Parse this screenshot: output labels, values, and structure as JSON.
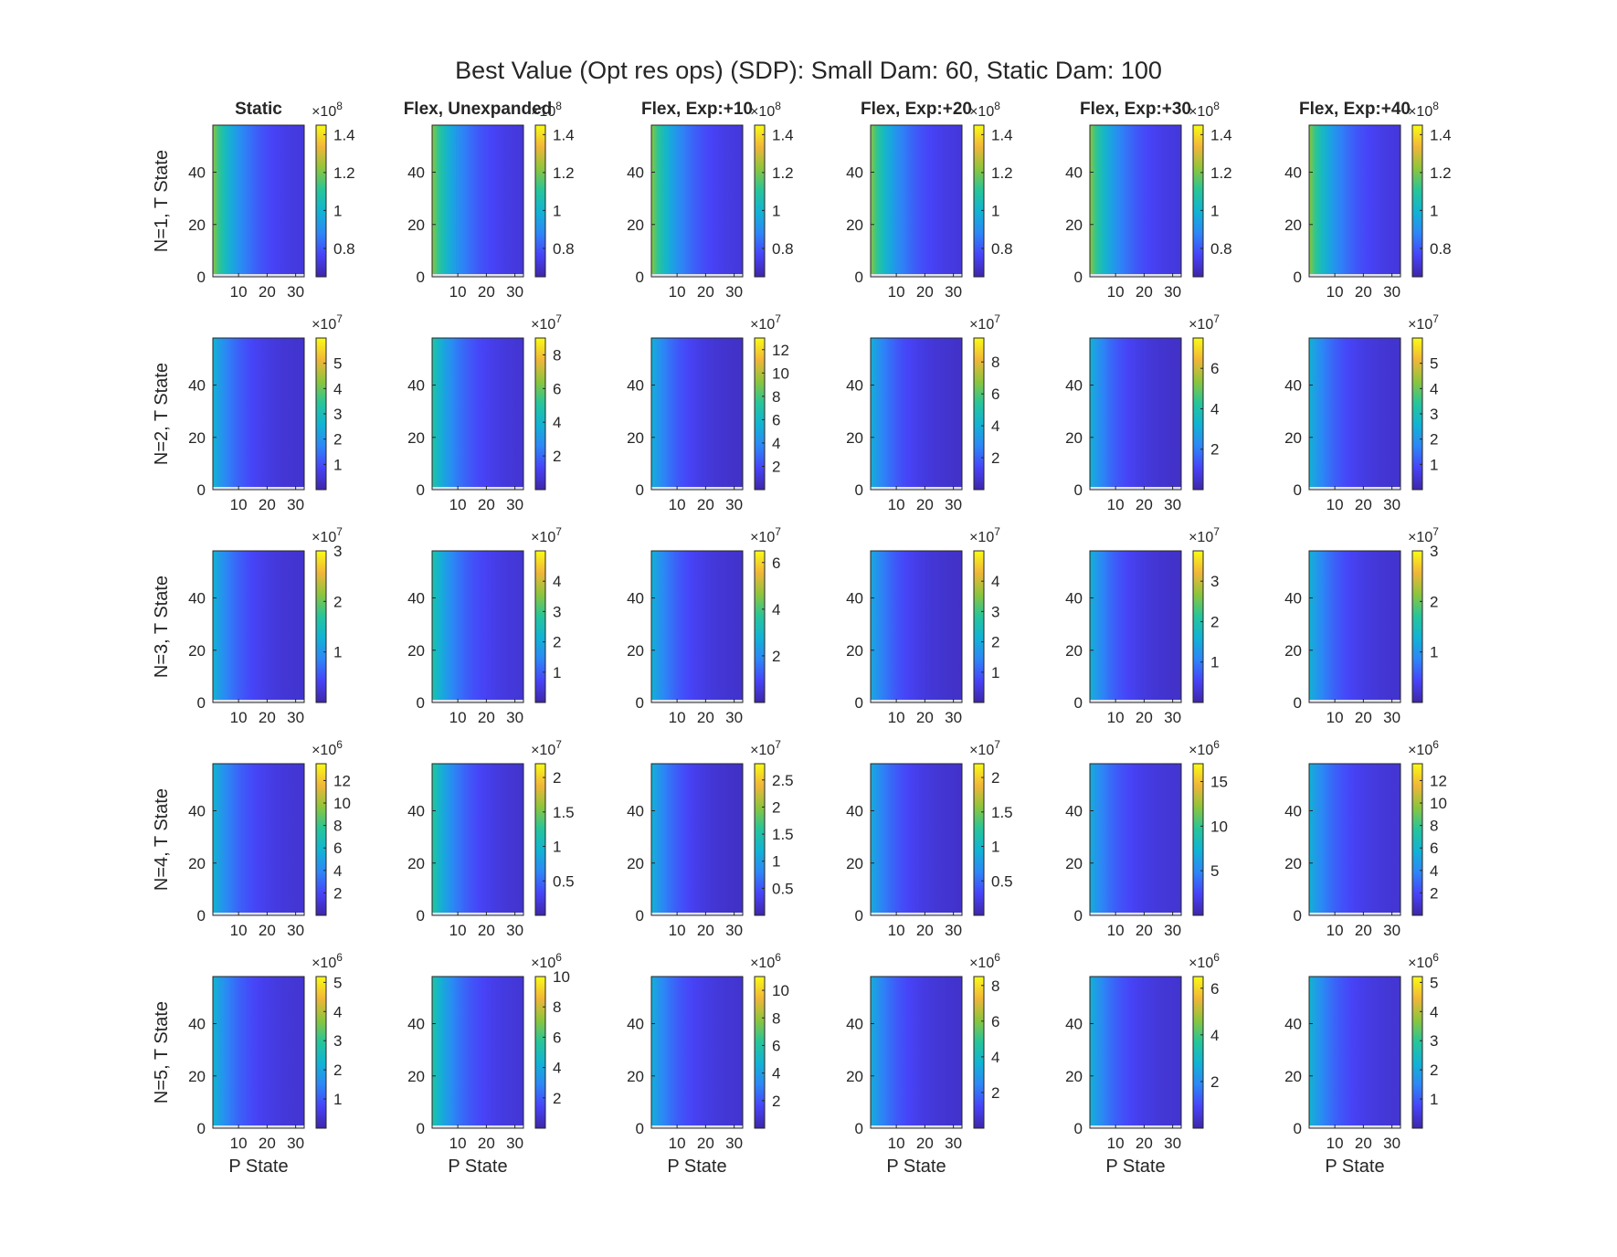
{
  "title": "Best Value (Opt res ops) (SDP): Small Dam: 60, Static Dam: 100",
  "chart_data": {
    "type": "heatmap",
    "title": "Best Value (Opt res ops) (SDP): Small Dam: 60, Static Dam: 100",
    "columns": [
      "Static",
      "Flex, Unexpanded",
      "Flex, Exp:+10",
      "Flex, Exp:+20",
      "Flex, Exp:+30",
      "Flex, Exp:+40"
    ],
    "rows": [
      "N=1, T State",
      "N=2, T State",
      "N=3, T State",
      "N=4, T State",
      "N=5, T State"
    ],
    "xlabel": "P State",
    "x_range": [
      1,
      33
    ],
    "y_range": [
      0,
      58
    ],
    "x_ticks": [
      "10",
      "20",
      "30"
    ],
    "y_ticks": [
      "0",
      "20",
      "40"
    ],
    "colormap": "parula",
    "colormap_colors": [
      "#3e26a8",
      "#4743f8",
      "#2d86f7",
      "#11b3d4",
      "#27c599",
      "#8dc53c",
      "#f2b638",
      "#f9fb15"
    ],
    "panels": [
      [
        {
          "multiplier": "×10^8",
          "cmin": 0.65,
          "cmax": 1.45,
          "ticks": [
            "0.8",
            "1",
            "1.2",
            "1.4"
          ],
          "tick_values": [
            0.8,
            1.0,
            1.2,
            1.4
          ],
          "left_max": 1.22,
          "right_min": 0.7
        },
        {
          "multiplier": "×10^8",
          "cmin": 0.65,
          "cmax": 1.45,
          "ticks": [
            "0.8",
            "1",
            "1.2",
            "1.4"
          ],
          "tick_values": [
            0.8,
            1.0,
            1.2,
            1.4
          ],
          "left_max": 1.22,
          "right_min": 0.7
        },
        {
          "multiplier": "×10^8",
          "cmin": 0.65,
          "cmax": 1.45,
          "ticks": [
            "0.8",
            "1",
            "1.2",
            "1.4"
          ],
          "tick_values": [
            0.8,
            1.0,
            1.2,
            1.4
          ],
          "left_max": 1.22,
          "right_min": 0.7
        },
        {
          "multiplier": "×10^8",
          "cmin": 0.65,
          "cmax": 1.45,
          "ticks": [
            "0.8",
            "1",
            "1.2",
            "1.4"
          ],
          "tick_values": [
            0.8,
            1.0,
            1.2,
            1.4
          ],
          "left_max": 1.22,
          "right_min": 0.7
        },
        {
          "multiplier": "×10^8",
          "cmin": 0.65,
          "cmax": 1.45,
          "ticks": [
            "0.8",
            "1",
            "1.2",
            "1.4"
          ],
          "tick_values": [
            0.8,
            1.0,
            1.2,
            1.4
          ],
          "left_max": 1.22,
          "right_min": 0.7
        },
        {
          "multiplier": "×10^8",
          "cmin": 0.65,
          "cmax": 1.45,
          "ticks": [
            "0.8",
            "1",
            "1.2",
            "1.4"
          ],
          "tick_values": [
            0.8,
            1.0,
            1.2,
            1.4
          ],
          "left_max": 1.22,
          "right_min": 0.7
        }
      ],
      [
        {
          "multiplier": "×10^7",
          "cmin": 0.0,
          "cmax": 6.0,
          "ticks": [
            "1",
            "2",
            "3",
            "4",
            "5"
          ],
          "tick_values": [
            1,
            2,
            3,
            4,
            5
          ],
          "left_max": 2.6,
          "right_min": 0.3
        },
        {
          "multiplier": "×10^7",
          "cmin": 0.0,
          "cmax": 9.0,
          "ticks": [
            "2",
            "4",
            "6",
            "8"
          ],
          "tick_values": [
            2,
            4,
            6,
            8
          ],
          "left_max": 5.0,
          "right_min": 0.5
        },
        {
          "multiplier": "×10^7",
          "cmin": 0.0,
          "cmax": 13.0,
          "ticks": [
            "2",
            "4",
            "6",
            "8",
            "10",
            "12"
          ],
          "tick_values": [
            2,
            4,
            6,
            8,
            10,
            12
          ],
          "left_max": 5.5,
          "right_min": 0.5
        },
        {
          "multiplier": "×10^7",
          "cmin": 0.0,
          "cmax": 9.5,
          "ticks": [
            "2",
            "4",
            "6",
            "8"
          ],
          "tick_values": [
            2,
            4,
            6,
            8
          ],
          "left_max": 4.0,
          "right_min": 0.4
        },
        {
          "multiplier": "×10^7",
          "cmin": 0.0,
          "cmax": 7.5,
          "ticks": [
            "2",
            "4",
            "6"
          ],
          "tick_values": [
            2,
            4,
            6
          ],
          "left_max": 3.2,
          "right_min": 0.3
        },
        {
          "multiplier": "×10^7",
          "cmin": 0.0,
          "cmax": 6.0,
          "ticks": [
            "1",
            "2",
            "3",
            "4",
            "5"
          ],
          "tick_values": [
            1,
            2,
            3,
            4,
            5
          ],
          "left_max": 2.6,
          "right_min": 0.3
        }
      ],
      [
        {
          "multiplier": "×10^7",
          "cmin": 0.0,
          "cmax": 3.0,
          "ticks": [
            "1",
            "2",
            "3"
          ],
          "tick_values": [
            1,
            2,
            3
          ],
          "left_max": 1.3,
          "right_min": 0.15
        },
        {
          "multiplier": "×10^7",
          "cmin": 0.0,
          "cmax": 5.0,
          "ticks": [
            "1",
            "2",
            "3",
            "4"
          ],
          "tick_values": [
            1,
            2,
            3,
            4
          ],
          "left_max": 2.7,
          "right_min": 0.3
        },
        {
          "multiplier": "×10^7",
          "cmin": 0.0,
          "cmax": 6.5,
          "ticks": [
            "2",
            "4",
            "6"
          ],
          "tick_values": [
            2,
            4,
            6
          ],
          "left_max": 2.8,
          "right_min": 0.3
        },
        {
          "multiplier": "×10^7",
          "cmin": 0.0,
          "cmax": 5.0,
          "ticks": [
            "1",
            "2",
            "3",
            "4"
          ],
          "tick_values": [
            1,
            2,
            3,
            4
          ],
          "left_max": 2.0,
          "right_min": 0.2
        },
        {
          "multiplier": "×10^7",
          "cmin": 0.0,
          "cmax": 3.75,
          "ticks": [
            "1",
            "2",
            "3"
          ],
          "tick_values": [
            1,
            2,
            3
          ],
          "left_max": 1.6,
          "right_min": 0.15
        },
        {
          "multiplier": "×10^7",
          "cmin": 0.0,
          "cmax": 3.0,
          "ticks": [
            "1",
            "2",
            "3"
          ],
          "tick_values": [
            1,
            2,
            3
          ],
          "left_max": 1.3,
          "right_min": 0.15
        }
      ],
      [
        {
          "multiplier": "×10^6",
          "cmin": 0.0,
          "cmax": 13.5,
          "ticks": [
            "2",
            "4",
            "6",
            "8",
            "10",
            "12"
          ],
          "tick_values": [
            2,
            4,
            6,
            8,
            10,
            12
          ],
          "left_max": 6.0,
          "right_min": 0.8
        },
        {
          "multiplier": "×10^7",
          "cmin": 0.0,
          "cmax": 2.2,
          "ticks": [
            "0.5",
            "1",
            "1.5",
            "2"
          ],
          "tick_values": [
            0.5,
            1.0,
            1.5,
            2.0
          ],
          "left_max": 1.25,
          "right_min": 0.1
        },
        {
          "multiplier": "×10^7",
          "cmin": 0.0,
          "cmax": 2.8,
          "ticks": [
            "0.5",
            "1",
            "1.5",
            "2",
            "2.5"
          ],
          "tick_values": [
            0.5,
            1.0,
            1.5,
            2.0,
            2.5
          ],
          "left_max": 1.2,
          "right_min": 0.1
        },
        {
          "multiplier": "×10^7",
          "cmin": 0.0,
          "cmax": 2.2,
          "ticks": [
            "0.5",
            "1",
            "1.5",
            "2"
          ],
          "tick_values": [
            0.5,
            1.0,
            1.5,
            2.0
          ],
          "left_max": 0.9,
          "right_min": 0.1
        },
        {
          "multiplier": "×10^6",
          "cmin": 0.0,
          "cmax": 17.0,
          "ticks": [
            "5",
            "10",
            "15"
          ],
          "tick_values": [
            5,
            10,
            15
          ],
          "left_max": 7.0,
          "right_min": 1.0
        },
        {
          "multiplier": "×10^6",
          "cmin": 0.0,
          "cmax": 13.5,
          "ticks": [
            "2",
            "4",
            "6",
            "8",
            "10",
            "12"
          ],
          "tick_values": [
            2,
            4,
            6,
            8,
            10,
            12
          ],
          "left_max": 5.8,
          "right_min": 0.8
        }
      ],
      [
        {
          "multiplier": "×10^6",
          "cmin": 0.0,
          "cmax": 5.2,
          "ticks": [
            "1",
            "2",
            "3",
            "4",
            "5"
          ],
          "tick_values": [
            1,
            2,
            3,
            4,
            5
          ],
          "left_max": 2.3,
          "right_min": 0.3
        },
        {
          "multiplier": "×10^6",
          "cmin": 0.0,
          "cmax": 10.0,
          "ticks": [
            "2",
            "4",
            "6",
            "8",
            "10"
          ],
          "tick_values": [
            2,
            4,
            6,
            8,
            10
          ],
          "left_max": 5.5,
          "right_min": 0.6
        },
        {
          "multiplier": "×10^6",
          "cmin": 0.0,
          "cmax": 11.0,
          "ticks": [
            "2",
            "4",
            "6",
            "8",
            "10"
          ],
          "tick_values": [
            2,
            4,
            6,
            8,
            10
          ],
          "left_max": 4.6,
          "right_min": 0.6
        },
        {
          "multiplier": "×10^6",
          "cmin": 0.0,
          "cmax": 8.5,
          "ticks": [
            "2",
            "4",
            "6",
            "8"
          ],
          "tick_values": [
            2,
            4,
            6,
            8
          ],
          "left_max": 3.5,
          "right_min": 0.4
        },
        {
          "multiplier": "×10^6",
          "cmin": 0.0,
          "cmax": 6.5,
          "ticks": [
            "2",
            "4",
            "6"
          ],
          "tick_values": [
            2,
            4,
            6
          ],
          "left_max": 2.8,
          "right_min": 0.35
        },
        {
          "multiplier": "×10^6",
          "cmin": 0.0,
          "cmax": 5.2,
          "ticks": [
            "1",
            "2",
            "3",
            "4",
            "5"
          ],
          "tick_values": [
            1,
            2,
            3,
            4,
            5
          ],
          "left_max": 2.3,
          "right_min": 0.3
        }
      ]
    ]
  }
}
